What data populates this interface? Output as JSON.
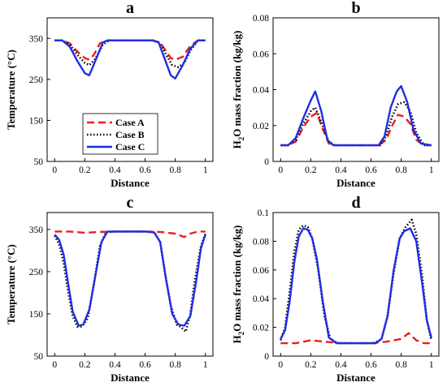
{
  "panels": [
    {
      "title": "a",
      "xlabel": "Distance",
      "ylabel": "Temperature (°C)",
      "xlim": [
        -0.05,
        1.05
      ],
      "ylim": [
        50,
        400
      ],
      "xticks": [
        "0",
        "0.2",
        "0.4",
        "0.6",
        "0.8",
        "1"
      ],
      "yticks": [
        "50",
        "150",
        "250",
        "350"
      ],
      "legend": {
        "position": "bottom-left",
        "entries": [
          "Case A",
          "Case B",
          "Case C"
        ]
      }
    },
    {
      "title": "b",
      "xlabel": "Distance",
      "ylabel_parts": [
        "H",
        "2",
        "O mass fraction (kg/kg)"
      ],
      "xlim": [
        -0.05,
        1.05
      ],
      "ylim": [
        0,
        0.08
      ],
      "xticks": [
        "0",
        "0.2",
        "0.4",
        "0.6",
        "0.8",
        "1"
      ],
      "yticks": [
        "0",
        "0.02",
        "0.04",
        "0.06",
        "0.08"
      ]
    },
    {
      "title": "c",
      "xlabel": "Distance",
      "ylabel": "Temperature (°C)",
      "xlim": [
        -0.05,
        1.05
      ],
      "ylim": [
        50,
        390
      ],
      "xticks": [
        "0",
        "0.2",
        "0.4",
        "0.6",
        "0.8",
        "1"
      ],
      "yticks": [
        "50",
        "150",
        "250",
        "350"
      ]
    },
    {
      "title": "d",
      "xlabel": "Distance",
      "ylabel_parts": [
        "H",
        "2",
        "O mass fraction (kg/kg)"
      ],
      "xlim": [
        -0.05,
        1.05
      ],
      "ylim": [
        0,
        0.1
      ],
      "xticks": [
        "0",
        "0.2",
        "0.4",
        "0.6",
        "0.8",
        "1"
      ],
      "yticks": [
        "0",
        "0.02",
        "0.04",
        "0.06",
        "0.08",
        "0.1"
      ]
    }
  ],
  "series_styles": [
    {
      "color": "#ee1c1c",
      "dash": "9,5"
    },
    {
      "color": "#000000",
      "dash": "1.5,2.5"
    },
    {
      "color": "#1f2ee6",
      "dash": ""
    }
  ],
  "chart_data": [
    {
      "type": "line",
      "title": "a",
      "xlabel": "Distance",
      "ylabel": "Temperature (°C)",
      "ylim": [
        50,
        400
      ],
      "series": [
        {
          "name": "Case A",
          "x": [
            0,
            0.05,
            0.1,
            0.15,
            0.2,
            0.23,
            0.26,
            0.3,
            0.35,
            0.5,
            0.65,
            0.7,
            0.74,
            0.77,
            0.8,
            0.85,
            0.9,
            0.95,
            1
          ],
          "y": [
            345,
            345,
            338,
            318,
            302,
            298,
            310,
            338,
            345,
            345,
            345,
            340,
            318,
            302,
            298,
            305,
            332,
            345,
            345
          ]
        },
        {
          "name": "Case B",
          "x": [
            0,
            0.05,
            0.1,
            0.15,
            0.2,
            0.23,
            0.27,
            0.32,
            0.36,
            0.5,
            0.65,
            0.7,
            0.74,
            0.78,
            0.82,
            0.86,
            0.9,
            0.95,
            1
          ],
          "y": [
            345,
            345,
            335,
            310,
            290,
            285,
            300,
            335,
            345,
            345,
            345,
            338,
            310,
            285,
            280,
            290,
            320,
            345,
            345
          ]
        },
        {
          "name": "Case C",
          "x": [
            0,
            0.05,
            0.1,
            0.15,
            0.2,
            0.23,
            0.27,
            0.32,
            0.35,
            0.5,
            0.65,
            0.69,
            0.73,
            0.77,
            0.8,
            0.85,
            0.9,
            0.95,
            1
          ],
          "y": [
            345,
            345,
            330,
            295,
            265,
            260,
            295,
            340,
            345,
            345,
            345,
            340,
            300,
            260,
            252,
            285,
            325,
            345,
            345
          ]
        }
      ]
    },
    {
      "type": "line",
      "title": "b",
      "xlabel": "Distance",
      "ylabel": "H2O mass fraction (kg/kg)",
      "ylim": [
        0,
        0.08
      ],
      "series": [
        {
          "name": "Case A",
          "x": [
            0,
            0.05,
            0.1,
            0.15,
            0.2,
            0.24,
            0.28,
            0.32,
            0.35,
            0.5,
            0.65,
            0.7,
            0.74,
            0.78,
            0.82,
            0.86,
            0.9,
            0.95,
            1
          ],
          "y": [
            0.009,
            0.009,
            0.011,
            0.019,
            0.025,
            0.027,
            0.018,
            0.01,
            0.009,
            0.009,
            0.009,
            0.012,
            0.02,
            0.026,
            0.025,
            0.021,
            0.012,
            0.009,
            0.009
          ]
        },
        {
          "name": "Case B",
          "x": [
            0,
            0.05,
            0.1,
            0.15,
            0.2,
            0.23,
            0.27,
            0.32,
            0.36,
            0.5,
            0.66,
            0.7,
            0.74,
            0.78,
            0.82,
            0.86,
            0.9,
            0.95,
            1
          ],
          "y": [
            0.009,
            0.009,
            0.012,
            0.021,
            0.028,
            0.03,
            0.022,
            0.011,
            0.009,
            0.009,
            0.009,
            0.014,
            0.025,
            0.032,
            0.033,
            0.028,
            0.016,
            0.009,
            0.009
          ]
        },
        {
          "name": "Case C",
          "x": [
            0,
            0.05,
            0.1,
            0.15,
            0.2,
            0.23,
            0.27,
            0.31,
            0.35,
            0.5,
            0.65,
            0.69,
            0.73,
            0.77,
            0.8,
            0.84,
            0.88,
            0.93,
            1
          ],
          "y": [
            0.009,
            0.009,
            0.013,
            0.024,
            0.034,
            0.039,
            0.028,
            0.012,
            0.009,
            0.009,
            0.009,
            0.014,
            0.03,
            0.039,
            0.042,
            0.033,
            0.018,
            0.01,
            0.009
          ]
        }
      ]
    },
    {
      "type": "line",
      "title": "c",
      "xlabel": "Distance",
      "ylabel": "Temperature (°C)",
      "ylim": [
        50,
        390
      ],
      "series": [
        {
          "name": "Case A",
          "x": [
            0,
            0.1,
            0.2,
            0.3,
            0.4,
            0.5,
            0.6,
            0.7,
            0.8,
            0.86,
            0.9,
            0.95,
            1
          ],
          "y": [
            345,
            345,
            342,
            344,
            345,
            345,
            345,
            344,
            340,
            332,
            340,
            345,
            345
          ]
        },
        {
          "name": "Case B",
          "x": [
            0,
            0.03,
            0.06,
            0.09,
            0.12,
            0.15,
            0.18,
            0.22,
            0.26,
            0.3,
            0.34,
            0.4,
            0.6,
            0.66,
            0.7,
            0.73,
            0.77,
            0.81,
            0.84,
            0.87,
            0.9,
            0.93,
            0.97,
            1
          ],
          "y": [
            335,
            315,
            270,
            200,
            145,
            120,
            120,
            140,
            220,
            310,
            343,
            345,
            345,
            343,
            320,
            250,
            170,
            125,
            118,
            108,
            150,
            230,
            310,
            340
          ]
        },
        {
          "name": "Case C",
          "x": [
            0,
            0.03,
            0.06,
            0.09,
            0.12,
            0.16,
            0.19,
            0.23,
            0.27,
            0.31,
            0.35,
            0.4,
            0.6,
            0.66,
            0.7,
            0.74,
            0.78,
            0.82,
            0.86,
            0.9,
            0.94,
            0.97,
            1
          ],
          "y": [
            338,
            325,
            290,
            220,
            155,
            122,
            125,
            160,
            240,
            320,
            345,
            345,
            345,
            343,
            320,
            230,
            150,
            125,
            122,
            145,
            230,
            305,
            338
          ]
        }
      ]
    },
    {
      "type": "line",
      "title": "d",
      "xlabel": "Distance",
      "ylabel": "H2O mass fraction (kg/kg)",
      "ylim": [
        0,
        0.1
      ],
      "series": [
        {
          "name": "Case A",
          "x": [
            0,
            0.1,
            0.2,
            0.3,
            0.4,
            0.6,
            0.7,
            0.8,
            0.85,
            0.9,
            0.95,
            1
          ],
          "y": [
            0.009,
            0.009,
            0.011,
            0.01,
            0.009,
            0.009,
            0.01,
            0.012,
            0.016,
            0.011,
            0.009,
            0.009
          ]
        },
        {
          "name": "Case B",
          "x": [
            0,
            0.03,
            0.06,
            0.09,
            0.12,
            0.15,
            0.18,
            0.21,
            0.25,
            0.29,
            0.33,
            0.38,
            0.62,
            0.67,
            0.71,
            0.75,
            0.79,
            0.83,
            0.87,
            0.9,
            0.94,
            0.97,
            1
          ],
          "y": [
            0.011,
            0.02,
            0.045,
            0.072,
            0.088,
            0.091,
            0.09,
            0.082,
            0.06,
            0.028,
            0.012,
            0.009,
            0.009,
            0.012,
            0.028,
            0.058,
            0.082,
            0.09,
            0.095,
            0.085,
            0.055,
            0.025,
            0.011
          ]
        },
        {
          "name": "Case C",
          "x": [
            0,
            0.03,
            0.06,
            0.09,
            0.12,
            0.15,
            0.18,
            0.21,
            0.24,
            0.28,
            0.32,
            0.37,
            0.63,
            0.67,
            0.71,
            0.75,
            0.79,
            0.82,
            0.86,
            0.9,
            0.94,
            0.97,
            1
          ],
          "y": [
            0.012,
            0.018,
            0.038,
            0.065,
            0.083,
            0.089,
            0.088,
            0.082,
            0.068,
            0.038,
            0.013,
            0.009,
            0.009,
            0.012,
            0.028,
            0.06,
            0.082,
            0.087,
            0.089,
            0.08,
            0.05,
            0.025,
            0.013
          ]
        }
      ]
    }
  ]
}
